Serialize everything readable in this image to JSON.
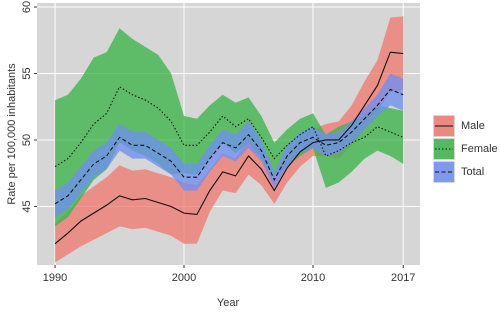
{
  "chart_data": {
    "type": "ribbon-line",
    "x_label": "Year",
    "y_label": "Rate per 100,000 inhabitants",
    "x": [
      1990,
      1991,
      1992,
      1993,
      1994,
      1995,
      1996,
      1997,
      1998,
      1999,
      2000,
      2001,
      2002,
      2003,
      2004,
      2005,
      2006,
      2007,
      2008,
      2009,
      2010,
      2011,
      2012,
      2013,
      2014,
      2015,
      2016,
      2017
    ],
    "xlim": [
      1988.6,
      2018.3
    ],
    "xticks": [
      1990,
      2000,
      2010,
      2017
    ],
    "ylim": [
      40.6,
      60.3
    ],
    "yticks": [
      45,
      50,
      55,
      60
    ],
    "grid": true,
    "legend_position": "right",
    "series": [
      {
        "name": "Male",
        "color": "#f07a72",
        "line_style": "solid",
        "values": [
          42.2,
          43.0,
          43.9,
          44.5,
          45.1,
          45.8,
          45.5,
          45.6,
          45.3,
          45.0,
          44.5,
          44.4,
          46.2,
          47.6,
          47.3,
          48.8,
          47.8,
          46.2,
          47.9,
          49.1,
          49.8,
          50.0,
          50.0,
          51.1,
          52.6,
          54.1,
          56.6,
          56.5
        ],
        "lower": [
          40.8,
          41.4,
          42.0,
          42.5,
          43.0,
          43.5,
          43.3,
          43.4,
          43.1,
          42.8,
          42.2,
          42.2,
          44.6,
          46.2,
          46.0,
          47.4,
          46.6,
          45.2,
          46.8,
          48.0,
          48.8,
          48.8,
          48.6,
          49.6,
          50.8,
          52.2,
          53.6,
          53.8
        ],
        "upper": [
          43.7,
          44.6,
          45.8,
          46.5,
          47.2,
          48.1,
          47.7,
          47.8,
          47.5,
          47.2,
          46.8,
          46.6,
          47.8,
          49.0,
          48.6,
          50.2,
          49.0,
          47.2,
          49.0,
          50.2,
          50.8,
          51.2,
          51.4,
          52.6,
          54.4,
          56.0,
          59.2,
          59.3
        ]
      },
      {
        "name": "Female",
        "color": "#3cb54a",
        "line_style": "dotted",
        "values": [
          48.0,
          48.6,
          49.8,
          51.2,
          52.0,
          54.0,
          53.4,
          53.0,
          52.4,
          51.4,
          49.6,
          49.6,
          50.6,
          51.8,
          51.0,
          51.6,
          50.2,
          48.6,
          49.6,
          50.4,
          51.0,
          48.8,
          49.2,
          49.8,
          50.2,
          51.0,
          50.6,
          50.2
        ],
        "lower": [
          43.5,
          44.2,
          45.6,
          47.0,
          47.8,
          49.8,
          49.2,
          48.8,
          48.2,
          47.4,
          47.5,
          47.4,
          48.6,
          49.8,
          49.0,
          49.8,
          48.6,
          47.2,
          48.0,
          48.8,
          49.4,
          46.4,
          46.8,
          47.6,
          48.6,
          49.2,
          48.8,
          48.2
        ],
        "upper": [
          53.0,
          53.4,
          54.6,
          56.2,
          56.6,
          58.4,
          57.6,
          57.0,
          56.4,
          55.0,
          51.8,
          51.6,
          52.6,
          53.4,
          52.8,
          53.2,
          51.8,
          49.8,
          50.8,
          51.6,
          52.0,
          50.4,
          51.0,
          51.4,
          51.8,
          52.6,
          52.4,
          52.2
        ]
      },
      {
        "name": "Total",
        "color": "#6f8ff0",
        "line_style": "dashed",
        "values": [
          45.2,
          45.8,
          47.0,
          48.2,
          48.8,
          50.2,
          49.6,
          49.6,
          49.0,
          48.4,
          47.2,
          47.2,
          48.6,
          49.8,
          49.4,
          50.4,
          49.2,
          47.0,
          48.8,
          49.8,
          50.2,
          49.6,
          49.8,
          50.6,
          51.6,
          52.6,
          53.8,
          53.4
        ],
        "lower": [
          44.2,
          44.8,
          46.0,
          47.2,
          47.8,
          49.2,
          48.6,
          48.6,
          48.0,
          47.4,
          46.2,
          46.2,
          47.6,
          48.8,
          48.4,
          49.4,
          48.4,
          46.4,
          48.0,
          49.0,
          49.4,
          48.8,
          49.0,
          49.8,
          50.8,
          51.8,
          52.6,
          52.2
        ],
        "upper": [
          46.2,
          46.8,
          48.0,
          49.2,
          49.8,
          51.2,
          50.6,
          50.6,
          50.0,
          49.4,
          48.2,
          48.2,
          49.6,
          50.8,
          50.4,
          51.4,
          50.0,
          47.6,
          49.6,
          50.6,
          51.0,
          50.4,
          50.6,
          51.4,
          52.4,
          53.4,
          55.0,
          54.6
        ]
      }
    ]
  }
}
